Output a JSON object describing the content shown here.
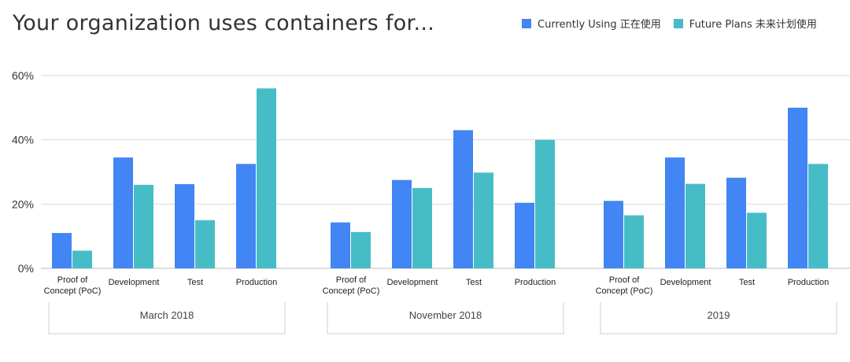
{
  "chart_data": {
    "type": "bar",
    "title": "Your organization uses containers for...",
    "ylabel": "",
    "xlabel": "",
    "ylim": [
      0,
      60
    ],
    "yticks": [
      "0%",
      "20%",
      "40%",
      "60%"
    ],
    "ytick_values": [
      0,
      20,
      40,
      60
    ],
    "legend_position": "top-right",
    "series": [
      {
        "name": "Currently Using 正在使用",
        "color": "#4285f4"
      },
      {
        "name": "Future Plans 未来计划使用",
        "color": "#46bdc6"
      }
    ],
    "groups": [
      {
        "name": "March 2018",
        "categories": [
          {
            "label": [
              "Proof of",
              "Concept (PoC)"
            ],
            "values": [
              11,
              5.5
            ]
          },
          {
            "label": [
              "Development"
            ],
            "values": [
              34.5,
              26
            ]
          },
          {
            "label": [
              "Test"
            ],
            "values": [
              26.2,
              15
            ]
          },
          {
            "label": [
              "Production"
            ],
            "values": [
              32.5,
              56
            ]
          }
        ]
      },
      {
        "name": "November 2018",
        "categories": [
          {
            "label": [
              "Proof of",
              "Concept (PoC)"
            ],
            "values": [
              14.3,
              11.3
            ]
          },
          {
            "label": [
              "Development"
            ],
            "values": [
              27.5,
              25
            ]
          },
          {
            "label": [
              "Test"
            ],
            "values": [
              43,
              29.8
            ]
          },
          {
            "label": [
              "Production"
            ],
            "values": [
              20.4,
              40
            ]
          }
        ]
      },
      {
        "name": "2019",
        "categories": [
          {
            "label": [
              "Proof of",
              "Concept (PoC)"
            ],
            "values": [
              21,
              16.5
            ]
          },
          {
            "label": [
              "Development"
            ],
            "values": [
              34.5,
              26.3
            ]
          },
          {
            "label": [
              "Test"
            ],
            "values": [
              28.2,
              17.3
            ]
          },
          {
            "label": [
              "Production"
            ],
            "values": [
              50,
              32.5
            ]
          }
        ]
      }
    ]
  }
}
